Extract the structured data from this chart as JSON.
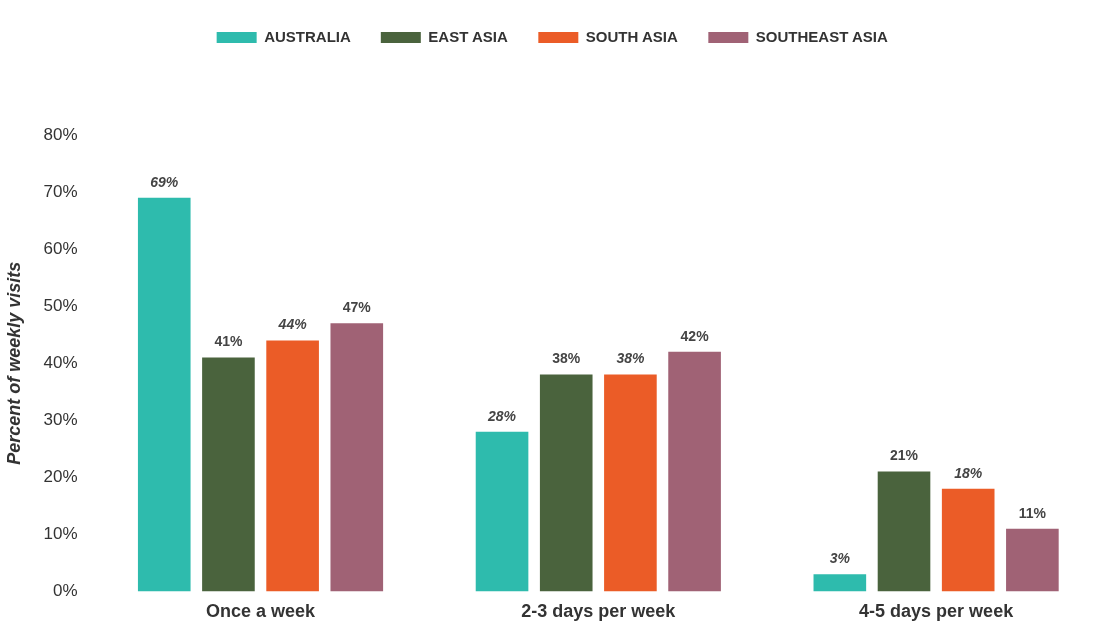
{
  "chart_data": {
    "type": "bar",
    "ylabel": "Percent of weekly visits",
    "categories": [
      "Once a week",
      "2-3 days per week",
      "4-5 days per week"
    ],
    "series": [
      {
        "name": "AUSTRALIA",
        "color": "#2ebbad",
        "values": [
          69,
          28,
          3
        ],
        "value_labels": [
          "69%",
          "28%",
          "3%"
        ]
      },
      {
        "name": "EAST ASIA",
        "color": "#4a633d",
        "values": [
          41,
          38,
          21
        ],
        "value_labels": [
          "41%",
          "38%",
          "21%"
        ]
      },
      {
        "name": "SOUTH ASIA",
        "color": "#eb5c27",
        "values": [
          44,
          38,
          18
        ],
        "value_labels": [
          "44%",
          "38%",
          "18%"
        ]
      },
      {
        "name": "SOUTHEAST ASIA",
        "color": "#a06275",
        "values": [
          47,
          42,
          11
        ],
        "value_labels": [
          "47%",
          "42%",
          "11%"
        ]
      }
    ],
    "ylim": [
      0,
      80
    ],
    "yticks": [
      {
        "value": 0,
        "label": "0%"
      },
      {
        "value": 10,
        "label": "10%"
      },
      {
        "value": 20,
        "label": "20%"
      },
      {
        "value": 30,
        "label": "30%"
      },
      {
        "value": 40,
        "label": "40%"
      },
      {
        "value": 50,
        "label": "50%"
      },
      {
        "value": 60,
        "label": "60%"
      },
      {
        "value": 70,
        "label": "70%"
      },
      {
        "value": 80,
        "label": "80%"
      }
    ],
    "grid": false,
    "legend": "top"
  }
}
